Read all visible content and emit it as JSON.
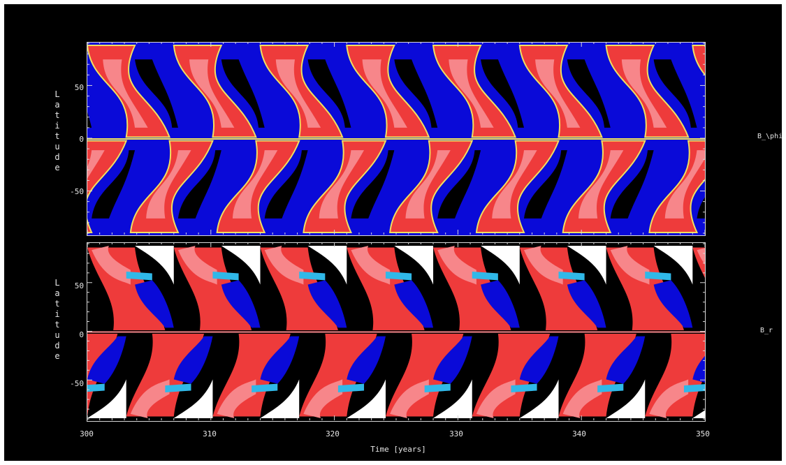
{
  "chart_data": [
    {
      "type": "heatmap",
      "name_label": "B_\\phi",
      "ylabel": "Latitude",
      "xlabel": "",
      "xlim": [
        300,
        350
      ],
      "ylim": [
        -90,
        90
      ],
      "yticks": [
        "50",
        "0",
        "-50"
      ],
      "cycle_period_years": 7.0,
      "colors": {
        "strong_positive": "#f7868a",
        "positive": "#ee3b3b",
        "transition": "#f0e060",
        "negative": "#0a0ad8",
        "strong_negative": "#000000"
      }
    },
    {
      "type": "heatmap",
      "name_label": "B_r",
      "ylabel": "Latitude",
      "xlabel": "Time [years]",
      "xlim": [
        300,
        350
      ],
      "ylim": [
        -90,
        90
      ],
      "yticks": [
        "50",
        "0",
        "-50"
      ],
      "xticks": [
        "300",
        "310",
        "320",
        "330",
        "340",
        "350"
      ],
      "cycle_period_years": 7.0,
      "colors": {
        "polar_positive": "#ffffff",
        "strong_positive": "#f7868a",
        "positive": "#ee3b3b",
        "transition": "#30b8e8",
        "negative": "#0a0ad8",
        "strong_negative": "#000000"
      }
    }
  ]
}
